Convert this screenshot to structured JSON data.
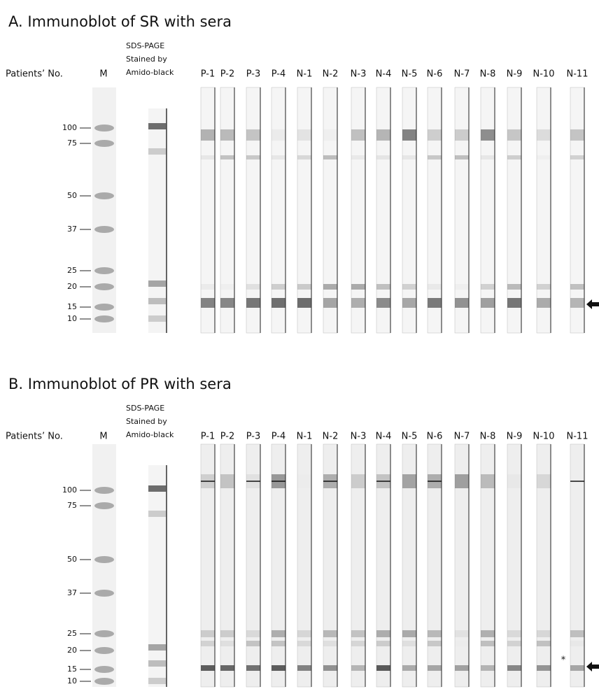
{
  "panels": [
    {
      "title": "A.  Immunoblot of SR with sera",
      "row_label": "Patients’ No.",
      "marker_label": "M",
      "stain_label": [
        "SDS-PAGE",
        "Stained by",
        "Amido-black"
      ],
      "lanes": [
        "P-1",
        "P-2",
        "P-3",
        "P-4",
        "N-1",
        "N-2",
        "N-3",
        "N-4",
        "N-5",
        "N-6",
        "N-7",
        "N-8",
        "N-9",
        "N-10",
        "N-11"
      ],
      "markers": [
        "100",
        "75",
        "50",
        "37",
        "25",
        "20",
        "15",
        "10"
      ]
    },
    {
      "title": "B.  Immunoblot of PR with sera",
      "row_label": "Patients’ No.",
      "marker_label": "M",
      "stain_label": [
        "SDS-PAGE",
        "Stained by",
        "Amido-black"
      ],
      "lanes": [
        "P-1",
        "P-2",
        "P-3",
        "P-4",
        "N-1",
        "N-2",
        "N-3",
        "N-4",
        "N-5",
        "N-6",
        "N-7",
        "N-8",
        "N-9",
        "N-10",
        "N-11"
      ],
      "markers": [
        "100",
        "75",
        "50",
        "37",
        "25",
        "20",
        "15",
        "10"
      ],
      "note": "*"
    }
  ]
}
